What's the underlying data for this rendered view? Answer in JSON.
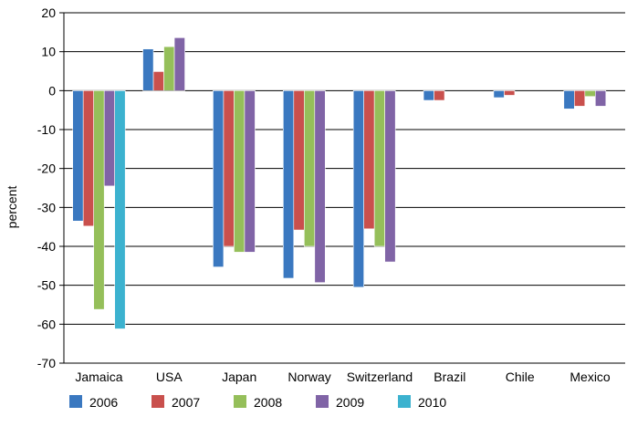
{
  "chart_data": {
    "type": "bar",
    "title": "",
    "xlabel": "",
    "ylabel": "percent",
    "ylim": [
      -70,
      20
    ],
    "yticks": [
      20,
      10,
      0,
      -10,
      -20,
      -30,
      -40,
      -50,
      -60,
      -70
    ],
    "grid": true,
    "legend_position": "bottom",
    "categories": [
      "Jamaica",
      "USA",
      "Japan",
      "Norway",
      "Switzerland",
      "Brazil",
      "Chile",
      "Mexico"
    ],
    "series": [
      {
        "name": "2006",
        "color": "#3a78c0",
        "values": [
          -33.5,
          10.7,
          -45.3,
          -48.2,
          -50.5,
          -2.5,
          -1.8,
          -4.7
        ]
      },
      {
        "name": "2007",
        "color": "#c9504d",
        "values": [
          -34.8,
          4.9,
          -40.0,
          -35.8,
          -35.5,
          -2.5,
          -1.2,
          -4.0
        ]
      },
      {
        "name": "2008",
        "color": "#95bf5a",
        "values": [
          -56.2,
          11.3,
          -41.5,
          -40.0,
          -40.0,
          null,
          null,
          -1.5
        ]
      },
      {
        "name": "2009",
        "color": "#8064a6",
        "values": [
          -24.5,
          13.6,
          -41.5,
          -49.3,
          -44.0,
          null,
          null,
          -4.0
        ]
      },
      {
        "name": "2010",
        "color": "#3cb2cf",
        "values": [
          -61.2,
          null,
          null,
          null,
          null,
          null,
          null,
          null
        ]
      }
    ]
  }
}
